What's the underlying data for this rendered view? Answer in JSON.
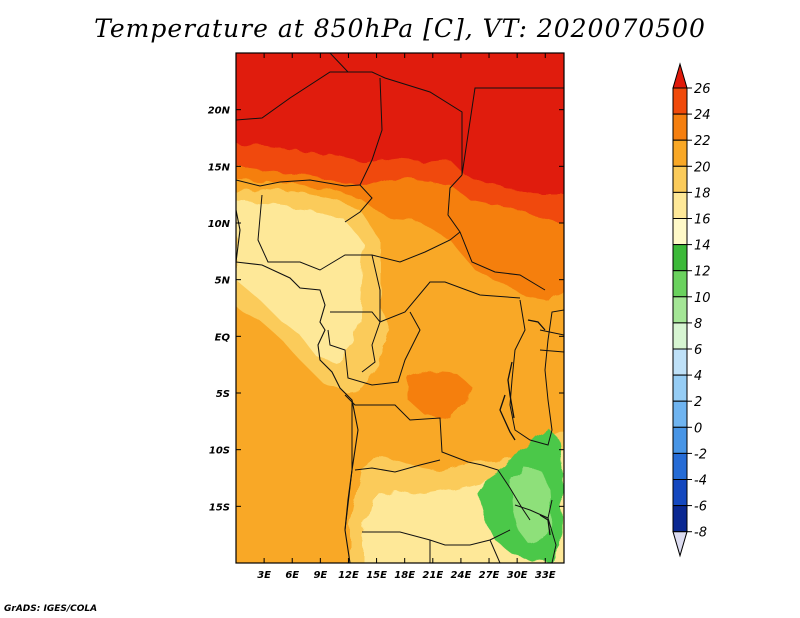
{
  "title": "Temperature at 850hPa [C], VT: 2020070500",
  "credit": "GrADS: IGES/COLA",
  "map": {
    "lon_range": [
      0,
      35
    ],
    "lat_range": [
      -20,
      25
    ],
    "lon_ticks": [
      "3E",
      "6E",
      "9E",
      "12E",
      "15E",
      "18E",
      "21E",
      "24E",
      "27E",
      "30E",
      "33E"
    ],
    "lat_ticks": [
      "20N",
      "15N",
      "10N",
      "5N",
      "EQ",
      "5S",
      "10S",
      "15S"
    ],
    "colors": {
      "c24": "#e01a0a",
      "c22": "#f04a0a",
      "c20": "#f57f0f",
      "c18": "#f9a826",
      "c16": "#fbcb5a",
      "c14": "#fee898",
      "c12": "#4cc848",
      "c10": "#8ee07a"
    }
  },
  "colorbar": {
    "labels": [
      "26",
      "24",
      "22",
      "20",
      "18",
      "16",
      "14",
      "12",
      "10",
      "8",
      "6",
      "4",
      "2",
      "0",
      "-2",
      "-4",
      "-6",
      "-8"
    ],
    "colors": [
      "#e01a0a",
      "#f04a0a",
      "#f57f0f",
      "#f9a826",
      "#fbcb5a",
      "#fee898",
      "#fff9c8",
      "#3cb939",
      "#6ad25e",
      "#a4e696",
      "#d7f5d2",
      "#bfe1f8",
      "#96cdf5",
      "#6fb4f0",
      "#4895e6",
      "#266cd6",
      "#1448bf",
      "#0a2892",
      "#060a60",
      "#dcdcf0"
    ]
  }
}
